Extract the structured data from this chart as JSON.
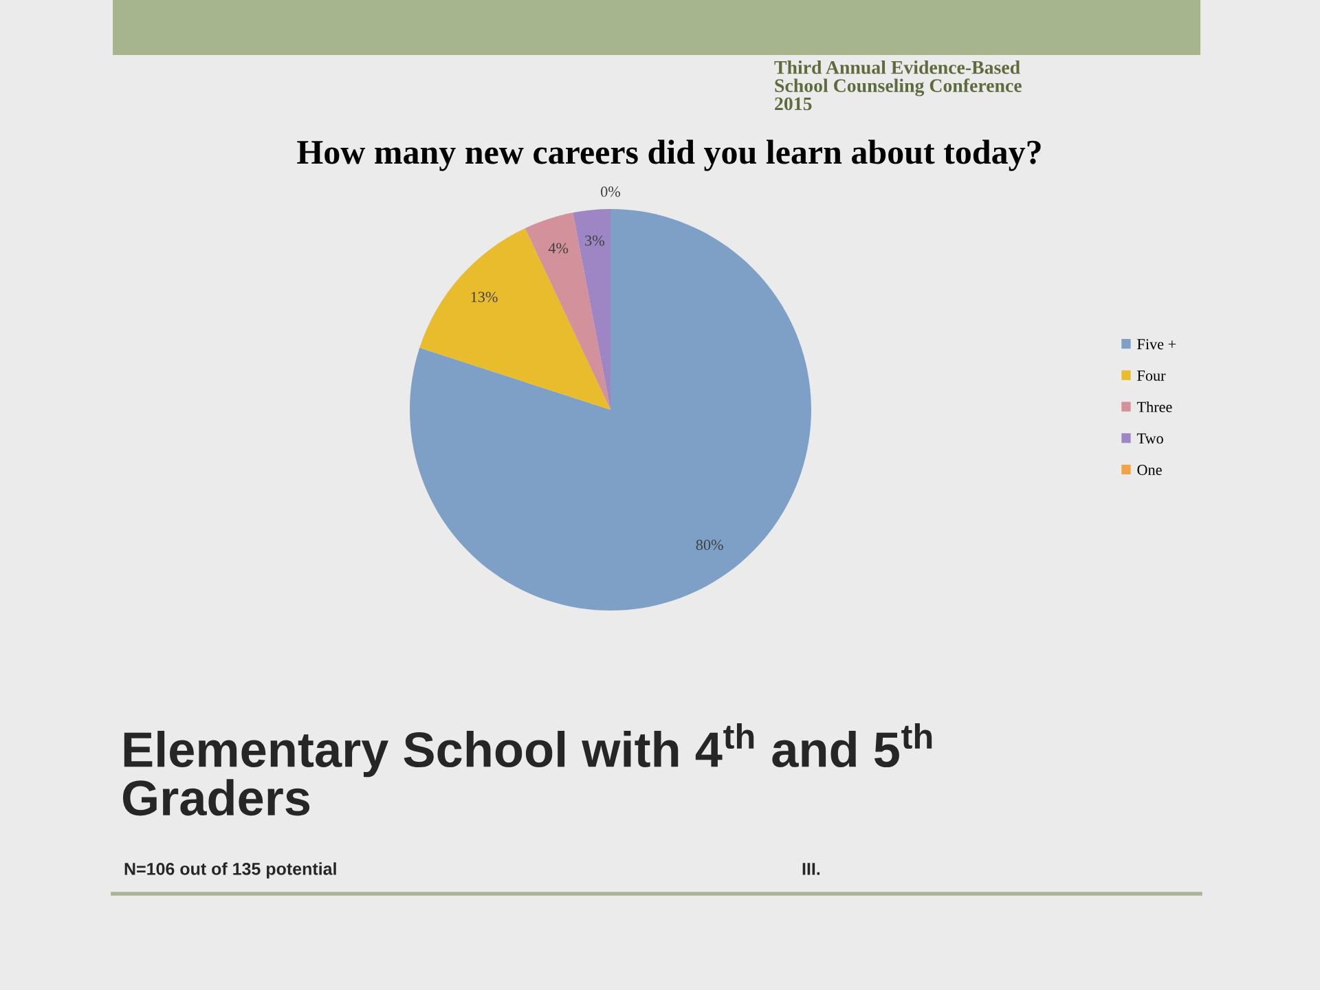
{
  "chart_data": {
    "type": "pie",
    "title": "How many new careers did you learn about today?",
    "subtitle": "Elementary School with 4$^{th}$ and 5$^{th}$ Graders",
    "categories": [
      "Five +",
      "Four",
      "Three",
      "Two",
      "One"
    ],
    "values": [
      80,
      13,
      4,
      3,
      0
    ],
    "value_labels": [
      "80%",
      "13%",
      "4%",
      "3%",
      "0%"
    ],
    "colors": [
      "#7ea0c6",
      "#e8bc2d",
      "#d3919c",
      "#9e86c4",
      "#f2a343"
    ],
    "legend": "right",
    "annotations": [
      "N=106 out of 135 potential",
      "III.",
      "Third Annual Evidence-Based School Counseling Conference 2015"
    ]
  }
}
